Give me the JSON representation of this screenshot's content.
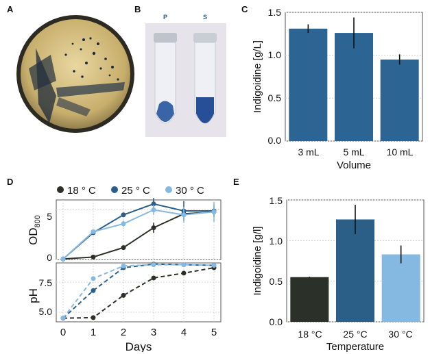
{
  "panel_labels": {
    "a": "A",
    "b": "B",
    "c": "C",
    "d": "D",
    "e": "E"
  },
  "photo_b": {
    "tube_left_label": "P",
    "tube_right_label": "S"
  },
  "colors": {
    "c18": "#2b3128",
    "c25": "#2c5f88",
    "c30": "#86b9e2",
    "bar_c": "#2c6494",
    "stain": "#3a64a8"
  },
  "chart_data": [
    {
      "id": "C",
      "type": "bar",
      "categories": [
        "3 mL",
        "5 mL",
        "10 mL"
      ],
      "values": [
        1.31,
        1.26,
        0.95
      ],
      "errors": [
        0.05,
        0.18,
        0.06
      ],
      "xlabel": "Volume",
      "ylabel": "Indigoidine [g/L]",
      "ylim": [
        0,
        1.5
      ],
      "yticks": [
        "0.0",
        "0.5",
        "1.0",
        "1.5"
      ],
      "grid": true
    },
    {
      "id": "D-top",
      "type": "line",
      "x": [
        0,
        1,
        2,
        3,
        4,
        5
      ],
      "xticks": [
        "0",
        "1",
        "2",
        "3",
        "4",
        "5"
      ],
      "xlabel": "Days",
      "ylabel": "OD",
      "ylabel_sub": "800",
      "ylim": [
        0,
        6
      ],
      "yticks": [
        "0",
        "5"
      ],
      "grid": true,
      "legend": [
        "18 ° C",
        "25 ° C",
        "30 ° C"
      ],
      "series": [
        {
          "name": "18 ° C",
          "values": [
            0.05,
            0.25,
            1.2,
            3.2,
            4.6,
            4.8
          ],
          "errors": [
            0,
            0,
            0.1,
            0.5,
            0.3,
            0.3
          ]
        },
        {
          "name": "25 ° C",
          "values": [
            0.05,
            2.7,
            4.5,
            5.6,
            4.9,
            4.9
          ],
          "errors": [
            0,
            0.2,
            0.2,
            0.6,
            1.0,
            0.6
          ]
        },
        {
          "name": "30 ° C",
          "values": [
            0.05,
            2.8,
            3.6,
            5.0,
            4.5,
            4.8
          ],
          "errors": [
            0,
            0.2,
            0.3,
            0.5,
            0.8,
            1.0
          ]
        }
      ]
    },
    {
      "id": "D-bottom",
      "type": "line",
      "x": [
        0,
        1,
        2,
        3,
        4,
        5
      ],
      "ylabel": "pH",
      "ylim": [
        4.2,
        9.1
      ],
      "yticks": [
        "5.0",
        "7.5"
      ],
      "grid": true,
      "series": [
        {
          "name": "18 ° C",
          "values": [
            4.5,
            4.55,
            6.4,
            7.85,
            8.25,
            8.7
          ]
        },
        {
          "name": "25 ° C",
          "values": [
            4.5,
            6.8,
            8.7,
            9.0,
            8.95,
            8.9
          ]
        },
        {
          "name": "30 ° C",
          "values": [
            4.5,
            7.8,
            8.85,
            8.95,
            8.95,
            8.9
          ]
        }
      ]
    },
    {
      "id": "E",
      "type": "bar",
      "categories": [
        "18 °C",
        "25 °C",
        "30 °C"
      ],
      "values": [
        0.55,
        1.26,
        0.83
      ],
      "errors": [
        0.005,
        0.18,
        0.11
      ],
      "xlabel": "Temperature",
      "ylabel": "Indigoidine [g/l]",
      "ylim": [
        0,
        1.5
      ],
      "yticks": [
        "0.0",
        "0.5",
        "1.0",
        "1.5"
      ],
      "grid": true
    }
  ]
}
